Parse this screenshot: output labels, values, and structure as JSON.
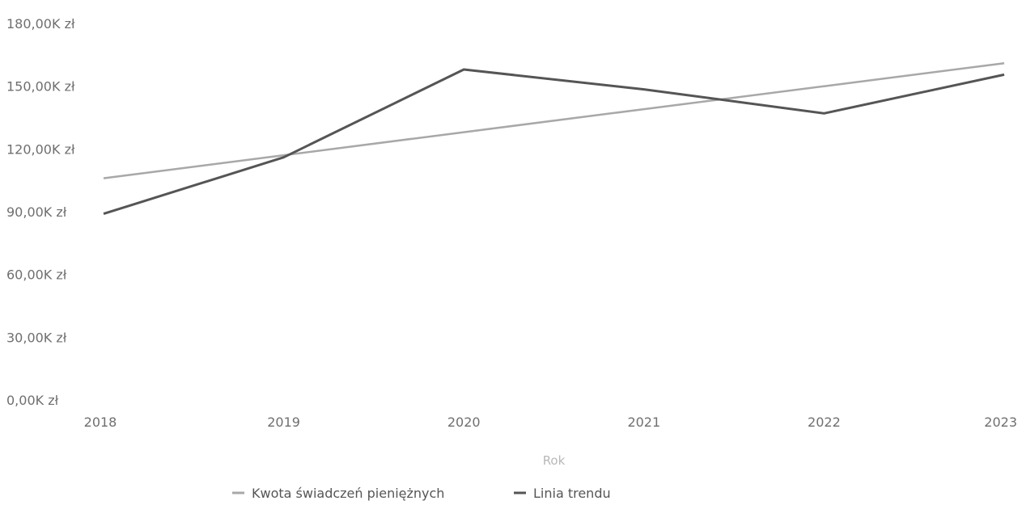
{
  "chart_data": {
    "type": "line",
    "x": [
      "2018",
      "2019",
      "2020",
      "2021",
      "2022",
      "2023"
    ],
    "xlabel": "Rok",
    "ylabel": "",
    "ylim": [
      0,
      180000
    ],
    "y_ticks": [
      0,
      30000,
      60000,
      90000,
      120000,
      150000,
      180000
    ],
    "y_tick_labels": [
      "0,00K zł",
      "30,00K zł",
      "60,00K zł",
      "90,00K zł",
      "120,00K zł",
      "150,00K zł",
      "180,00K zł"
    ],
    "grid": false,
    "legend_position": "bottom",
    "series": [
      {
        "name": "Kwota świadczeń pieniężnych",
        "color": "#a8a8a8",
        "values": [
          106000,
          117000,
          128000,
          139000,
          150000,
          161000
        ]
      },
      {
        "name": "Linia trendu",
        "color": "#555555",
        "values": [
          89000,
          116000,
          158000,
          148500,
          137000,
          155500
        ]
      }
    ]
  }
}
